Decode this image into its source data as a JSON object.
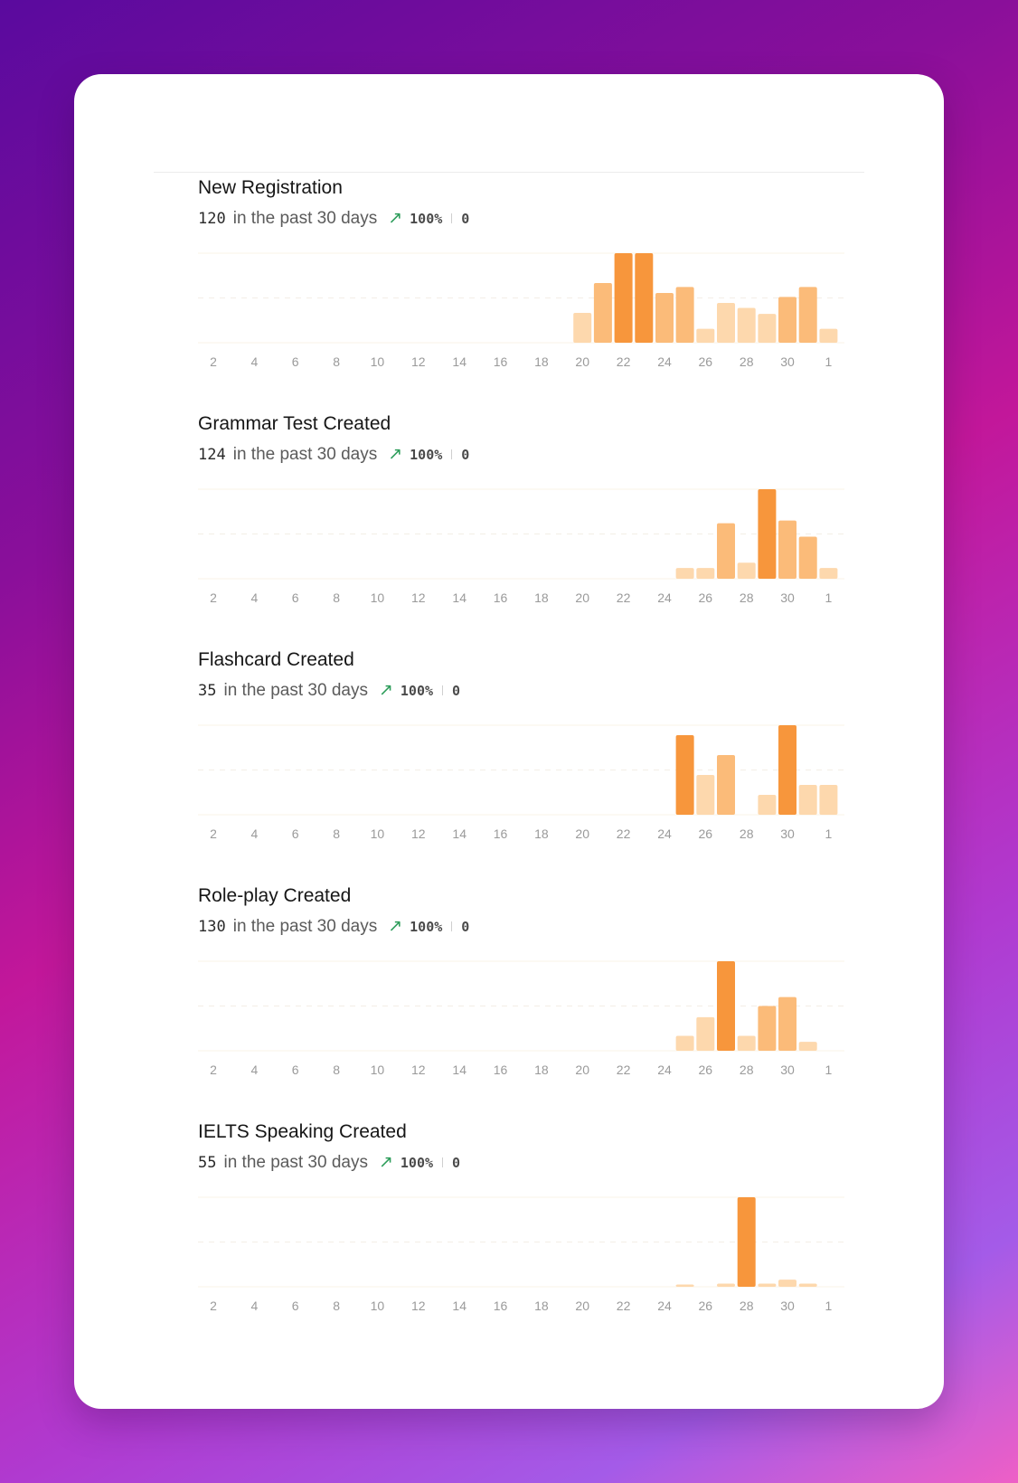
{
  "period_text": "in the past 30 days",
  "sections": [
    {
      "title": "New Registration",
      "count": "120",
      "change": "100%",
      "delta": "0"
    },
    {
      "title": "Grammar Test Created",
      "count": "124",
      "change": "100%",
      "delta": "0"
    },
    {
      "title": "Flashcard Created",
      "count": "35",
      "change": "100%",
      "delta": "0"
    },
    {
      "title": "Role-play Created",
      "count": "130",
      "change": "100%",
      "delta": "0"
    },
    {
      "title": "IELTS Speaking Created",
      "count": "55",
      "change": "100%",
      "delta": "0"
    }
  ],
  "colors": {
    "light": "#fdd8ad",
    "medium": "#fbbb79",
    "strong": "#f7963c",
    "trend": "#2e9d5b"
  },
  "icons": {
    "trend": "arrow-up-right-icon"
  },
  "chart_data": [
    {
      "type": "bar",
      "title": "New Registration",
      "categories": [
        "2",
        "3",
        "4",
        "5",
        "6",
        "7",
        "8",
        "9",
        "10",
        "11",
        "12",
        "13",
        "14",
        "15",
        "16",
        "17",
        "18",
        "19",
        "20",
        "21",
        "22",
        "23",
        "24",
        "25",
        "26",
        "27",
        "28",
        "29",
        "30",
        "31",
        "1"
      ],
      "values": [
        0,
        0,
        0,
        0,
        0,
        0,
        0,
        0,
        0,
        0,
        0,
        0,
        0,
        0,
        0,
        0,
        0,
        0,
        3,
        6,
        9,
        9,
        5,
        5.6,
        1.4,
        4,
        3.5,
        2.9,
        4.6,
        5.6,
        1.4
      ],
      "tick_labels": [
        "2",
        "4",
        "6",
        "8",
        "10",
        "12",
        "14",
        "16",
        "18",
        "20",
        "22",
        "24",
        "26",
        "28",
        "30",
        "1"
      ],
      "ylim": [
        0,
        9
      ],
      "grid": true
    },
    {
      "type": "bar",
      "title": "Grammar Test Created",
      "categories": [
        "2",
        "3",
        "4",
        "5",
        "6",
        "7",
        "8",
        "9",
        "10",
        "11",
        "12",
        "13",
        "14",
        "15",
        "16",
        "17",
        "18",
        "19",
        "20",
        "21",
        "22",
        "23",
        "24",
        "25",
        "26",
        "27",
        "28",
        "29",
        "30",
        "31",
        "1"
      ],
      "values": [
        0,
        0,
        0,
        0,
        0,
        0,
        0,
        0,
        0,
        0,
        0,
        0,
        0,
        0,
        0,
        0,
        0,
        0,
        0,
        0,
        0,
        0,
        0,
        2.4,
        2.4,
        12.4,
        3.6,
        20,
        13,
        9.4,
        2.4
      ],
      "tick_labels": [
        "2",
        "4",
        "6",
        "8",
        "10",
        "12",
        "14",
        "16",
        "18",
        "20",
        "22",
        "24",
        "26",
        "28",
        "30",
        "1"
      ],
      "ylim": [
        0,
        20
      ],
      "grid": true
    },
    {
      "type": "bar",
      "title": "Flashcard Created",
      "categories": [
        "2",
        "3",
        "4",
        "5",
        "6",
        "7",
        "8",
        "9",
        "10",
        "11",
        "12",
        "13",
        "14",
        "15",
        "16",
        "17",
        "18",
        "19",
        "20",
        "21",
        "22",
        "23",
        "24",
        "25",
        "26",
        "27",
        "28",
        "29",
        "30",
        "31",
        "1"
      ],
      "values": [
        0,
        0,
        0,
        0,
        0,
        0,
        0,
        0,
        0,
        0,
        0,
        0,
        0,
        0,
        0,
        0,
        0,
        0,
        0,
        0,
        0,
        0,
        0,
        8,
        4,
        6,
        0,
        2,
        9,
        3,
        3
      ],
      "tick_labels": [
        "2",
        "4",
        "6",
        "8",
        "10",
        "12",
        "14",
        "16",
        "18",
        "20",
        "22",
        "24",
        "26",
        "28",
        "30",
        "1"
      ],
      "ylim": [
        0,
        9
      ],
      "grid": true
    },
    {
      "type": "bar",
      "title": "Role-play Created",
      "categories": [
        "2",
        "3",
        "4",
        "5",
        "6",
        "7",
        "8",
        "9",
        "10",
        "11",
        "12",
        "13",
        "14",
        "15",
        "16",
        "17",
        "18",
        "19",
        "20",
        "21",
        "22",
        "23",
        "24",
        "25",
        "26",
        "27",
        "28",
        "29",
        "30",
        "31",
        "1"
      ],
      "values": [
        0,
        0,
        0,
        0,
        0,
        0,
        0,
        0,
        0,
        0,
        0,
        0,
        0,
        0,
        0,
        0,
        0,
        0,
        0,
        0,
        0,
        0,
        0,
        4,
        9,
        24,
        4,
        12,
        14.4,
        2.4,
        0
      ],
      "tick_labels": [
        "2",
        "4",
        "6",
        "8",
        "10",
        "12",
        "14",
        "16",
        "18",
        "20",
        "22",
        "24",
        "26",
        "28",
        "30",
        "1"
      ],
      "ylim": [
        0,
        24
      ],
      "grid": true
    },
    {
      "type": "bar",
      "title": "IELTS Speaking Created",
      "categories": [
        "2",
        "3",
        "4",
        "5",
        "6",
        "7",
        "8",
        "9",
        "10",
        "11",
        "12",
        "13",
        "14",
        "15",
        "16",
        "17",
        "18",
        "19",
        "20",
        "21",
        "22",
        "23",
        "24",
        "25",
        "26",
        "27",
        "28",
        "29",
        "30",
        "31",
        "1"
      ],
      "values": [
        0,
        0,
        0,
        0,
        0,
        0,
        0,
        0,
        0,
        0,
        0,
        0,
        0,
        0,
        0,
        0,
        0,
        0,
        0,
        0,
        0,
        0,
        0,
        0.5,
        0,
        0.7,
        20,
        0.7,
        1.6,
        0.7,
        0
      ],
      "tick_labels": [
        "2",
        "4",
        "6",
        "8",
        "10",
        "12",
        "14",
        "16",
        "18",
        "20",
        "22",
        "24",
        "26",
        "28",
        "30",
        "1"
      ],
      "ylim": [
        0,
        20
      ],
      "grid": true
    }
  ]
}
